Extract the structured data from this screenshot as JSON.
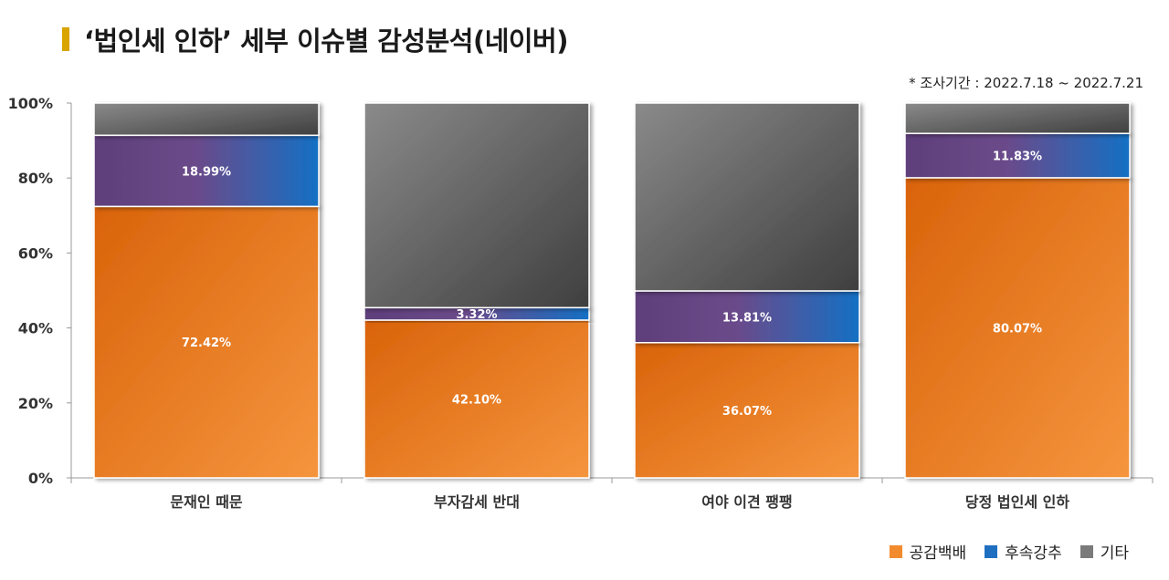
{
  "title": "‘법인세 인하’ 세부 이슈별 감성분석(네이버)",
  "period": "* 조사기간 : 2022.7.18 ~ 2022.7.21",
  "colors": {
    "공감백배": "#f28a2e",
    "후속강추": "#1f6fc1",
    "기타": "#7a7a7a",
    "purple": "#6a3f84"
  },
  "chart_data": {
    "type": "bar",
    "stacked": true,
    "categories": [
      "문재인 때문",
      "부자감세 반대",
      "여야 이견 팽팽",
      "당정 법인세 인하"
    ],
    "series": [
      {
        "name": "공감백배",
        "values": [
          72.42,
          42.1,
          36.07,
          80.07
        ],
        "labels": [
          "72.42%",
          "42.10%",
          "36.07%",
          "80.07%"
        ]
      },
      {
        "name": "후속강추",
        "values": [
          18.99,
          3.32,
          13.81,
          11.83
        ],
        "labels": [
          "18.99%",
          "3.32%",
          "13.81%",
          "11.83%"
        ]
      },
      {
        "name": "기타",
        "values": [
          8.59,
          54.58,
          50.12,
          8.1
        ]
      }
    ],
    "ylim": [
      0,
      100
    ],
    "yticks": [
      "0%",
      "20%",
      "40%",
      "60%",
      "80%",
      "100%"
    ],
    "legend_position": "bottom-right",
    "grid": false
  }
}
